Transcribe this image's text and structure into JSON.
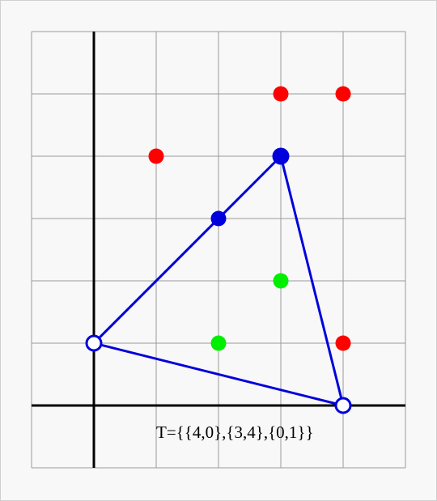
{
  "diagram": {
    "label": "T={{4,0},{3,4},{0,1}}",
    "grid": {
      "x_range": [
        -1,
        5
      ],
      "y_range": [
        -1,
        6
      ],
      "step": 1
    },
    "colors": {
      "red": "#ff0000",
      "green": "#00ee00",
      "blue": "#0000dd"
    },
    "triangle": {
      "vertices": [
        [
          4,
          0
        ],
        [
          3,
          4
        ],
        [
          0,
          1
        ]
      ],
      "color": "#0000dd"
    },
    "points": [
      {
        "x": 0,
        "y": 1,
        "color": "blue",
        "style": "hollow"
      },
      {
        "x": 4,
        "y": 0,
        "color": "blue",
        "style": "hollow"
      },
      {
        "x": 3,
        "y": 4,
        "color": "blue",
        "style": "large"
      },
      {
        "x": 2,
        "y": 3,
        "color": "blue",
        "style": "filled"
      },
      {
        "x": 1,
        "y": 4,
        "color": "red",
        "style": "filled"
      },
      {
        "x": 3,
        "y": 5,
        "color": "red",
        "style": "filled"
      },
      {
        "x": 4,
        "y": 5,
        "color": "red",
        "style": "filled"
      },
      {
        "x": 4,
        "y": 1,
        "color": "red",
        "style": "filled"
      },
      {
        "x": 3,
        "y": 2,
        "color": "green",
        "style": "filled"
      },
      {
        "x": 2,
        "y": 1,
        "color": "green",
        "style": "filled"
      }
    ]
  }
}
